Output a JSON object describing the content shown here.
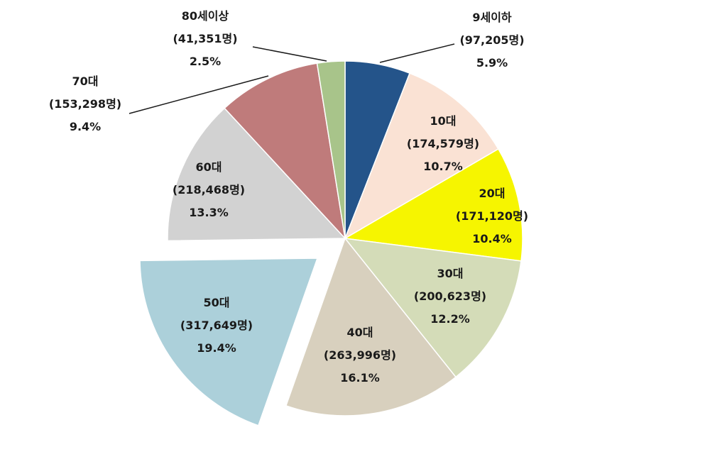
{
  "chart_data": {
    "type": "pie",
    "start_angle_deg": 0,
    "direction": "clockwise",
    "slices": [
      {
        "label": "9세이하",
        "count": "(97,205명)",
        "value": 97205,
        "percent": "5.9%",
        "color": "#24548a",
        "exploded": false
      },
      {
        "label": "10대",
        "count": "(174,579명)",
        "value": 174579,
        "percent": "10.7%",
        "color": "#fae2d4",
        "exploded": false
      },
      {
        "label": "20대",
        "count": "(171,120명)",
        "value": 171120,
        "percent": "10.4%",
        "color": "#f6f500",
        "exploded": false
      },
      {
        "label": "30대",
        "count": "(200,623명)",
        "value": 200623,
        "percent": "12.2%",
        "color": "#d4dcb8",
        "exploded": false
      },
      {
        "label": "40대",
        "count": "(263,996명)",
        "value": 263996,
        "percent": "16.1%",
        "color": "#d8d0be",
        "exploded": false
      },
      {
        "label": "50대",
        "count": "(317,649명)",
        "value": 317649,
        "percent": "19.4%",
        "color": "#acd0da",
        "exploded": true
      },
      {
        "label": "60대",
        "count": "(218,468명)",
        "value": 218468,
        "percent": "13.3%",
        "color": "#d2d2d2",
        "exploded": false
      },
      {
        "label": "70대",
        "count": "(153,298명)",
        "value": 153298,
        "percent": "9.4%",
        "color": "#bf7b7b",
        "exploded": false
      },
      {
        "label": "80세이상",
        "count": "(41,351명)",
        "value": 41351,
        "percent": "2.5%",
        "color": "#a8c48a",
        "exploded": false
      }
    ]
  }
}
